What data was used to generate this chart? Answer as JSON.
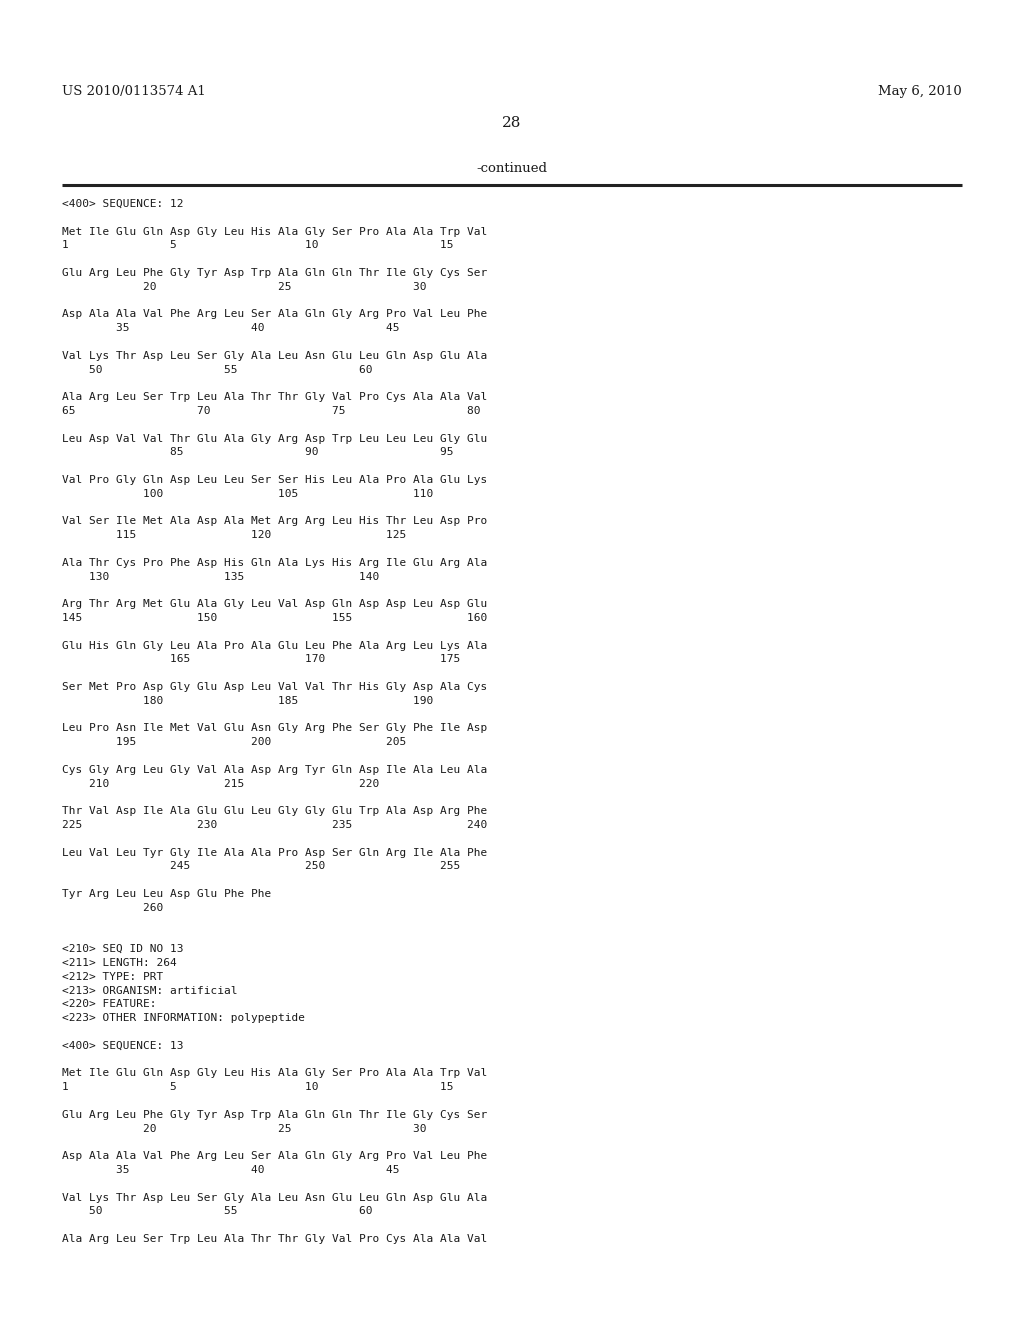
{
  "header_left": "US 2010/0113574 A1",
  "header_right": "May 6, 2010",
  "page_number": "28",
  "continued_label": "-continued",
  "background_color": "#ffffff",
  "text_color": "#1a1a1a",
  "lines": [
    "<400> SEQUENCE: 12",
    "",
    "Met Ile Glu Gln Asp Gly Leu His Ala Gly Ser Pro Ala Ala Trp Val",
    "1               5                   10                  15",
    "",
    "Glu Arg Leu Phe Gly Tyr Asp Trp Ala Gln Gln Thr Ile Gly Cys Ser",
    "            20                  25                  30",
    "",
    "Asp Ala Ala Val Phe Arg Leu Ser Ala Gln Gly Arg Pro Val Leu Phe",
    "        35                  40                  45",
    "",
    "Val Lys Thr Asp Leu Ser Gly Ala Leu Asn Glu Leu Gln Asp Glu Ala",
    "    50                  55                  60",
    "",
    "Ala Arg Leu Ser Trp Leu Ala Thr Thr Gly Val Pro Cys Ala Ala Val",
    "65                  70                  75                  80",
    "",
    "Leu Asp Val Val Thr Glu Ala Gly Arg Asp Trp Leu Leu Leu Gly Glu",
    "                85                  90                  95",
    "",
    "Val Pro Gly Gln Asp Leu Leu Ser Ser His Leu Ala Pro Ala Glu Lys",
    "            100                 105                 110",
    "",
    "Val Ser Ile Met Ala Asp Ala Met Arg Arg Leu His Thr Leu Asp Pro",
    "        115                 120                 125",
    "",
    "Ala Thr Cys Pro Phe Asp His Gln Ala Lys His Arg Ile Glu Arg Ala",
    "    130                 135                 140",
    "",
    "Arg Thr Arg Met Glu Ala Gly Leu Val Asp Gln Asp Asp Leu Asp Glu",
    "145                 150                 155                 160",
    "",
    "Glu His Gln Gly Leu Ala Pro Ala Glu Leu Phe Ala Arg Leu Lys Ala",
    "                165                 170                 175",
    "",
    "Ser Met Pro Asp Gly Glu Asp Leu Val Val Thr His Gly Asp Ala Cys",
    "            180                 185                 190",
    "",
    "Leu Pro Asn Ile Met Val Glu Asn Gly Arg Phe Ser Gly Phe Ile Asp",
    "        195                 200                 205",
    "",
    "Cys Gly Arg Leu Gly Val Ala Asp Arg Tyr Gln Asp Ile Ala Leu Ala",
    "    210                 215                 220",
    "",
    "Thr Val Asp Ile Ala Glu Glu Leu Gly Gly Glu Trp Ala Asp Arg Phe",
    "225                 230                 235                 240",
    "",
    "Leu Val Leu Tyr Gly Ile Ala Ala Pro Asp Ser Gln Arg Ile Ala Phe",
    "                245                 250                 255",
    "",
    "Tyr Arg Leu Leu Asp Glu Phe Phe",
    "            260",
    "",
    "",
    "<210> SEQ ID NO 13",
    "<211> LENGTH: 264",
    "<212> TYPE: PRT",
    "<213> ORGANISM: artificial",
    "<220> FEATURE:",
    "<223> OTHER INFORMATION: polypeptide",
    "",
    "<400> SEQUENCE: 13",
    "",
    "Met Ile Glu Gln Asp Gly Leu His Ala Gly Ser Pro Ala Ala Trp Val",
    "1               5                   10                  15",
    "",
    "Glu Arg Leu Phe Gly Tyr Asp Trp Ala Gln Gln Thr Ile Gly Cys Ser",
    "            20                  25                  30",
    "",
    "Asp Ala Ala Val Phe Arg Leu Ser Ala Gln Gly Arg Pro Val Leu Phe",
    "        35                  40                  45",
    "",
    "Val Lys Thr Asp Leu Ser Gly Ala Leu Asn Glu Leu Gln Asp Glu Ala",
    "    50                  55                  60",
    "",
    "Ala Arg Leu Ser Trp Leu Ala Thr Thr Gly Val Pro Cys Ala Ala Val"
  ]
}
